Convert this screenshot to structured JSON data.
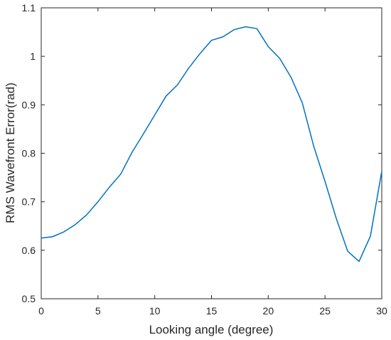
{
  "colors": {
    "series": "#0072BD",
    "axis": "#262626",
    "background": "#ffffff"
  },
  "chart_data": {
    "type": "line",
    "title": "",
    "xlabel": "Looking angle (degree)",
    "ylabel": "RMS Wavefront Error(rad)",
    "xlim": [
      0,
      30
    ],
    "ylim": [
      0.5,
      1.1
    ],
    "xticks": [
      0,
      5,
      10,
      15,
      20,
      25,
      30
    ],
    "yticks": [
      0.5,
      0.6,
      0.7,
      0.8,
      0.9,
      1,
      1.1
    ],
    "xtick_labels": [
      "0",
      "5",
      "10",
      "15",
      "20",
      "25",
      "30"
    ],
    "ytick_labels": [
      "0.5",
      "0.6",
      "0.7",
      "0.8",
      "0.9",
      "1",
      "1.1"
    ],
    "grid": false,
    "legend": "none",
    "series": [
      {
        "x": [
          0,
          1,
          2,
          3,
          4,
          5,
          6,
          7,
          8,
          9,
          10,
          11,
          12,
          13,
          14,
          15,
          16,
          17,
          18,
          19,
          20,
          21,
          22,
          23,
          24,
          25,
          26,
          27,
          28,
          29,
          30
        ],
        "values": [
          0.625,
          0.628,
          0.638,
          0.653,
          0.673,
          0.7,
          0.73,
          0.757,
          0.802,
          0.84,
          0.879,
          0.918,
          0.941,
          0.976,
          1.006,
          1.033,
          1.04,
          1.055,
          1.061,
          1.057,
          1.02,
          0.996,
          0.957,
          0.904,
          0.815,
          0.742,
          0.665,
          0.598,
          0.577,
          0.629,
          0.763
        ]
      }
    ]
  }
}
